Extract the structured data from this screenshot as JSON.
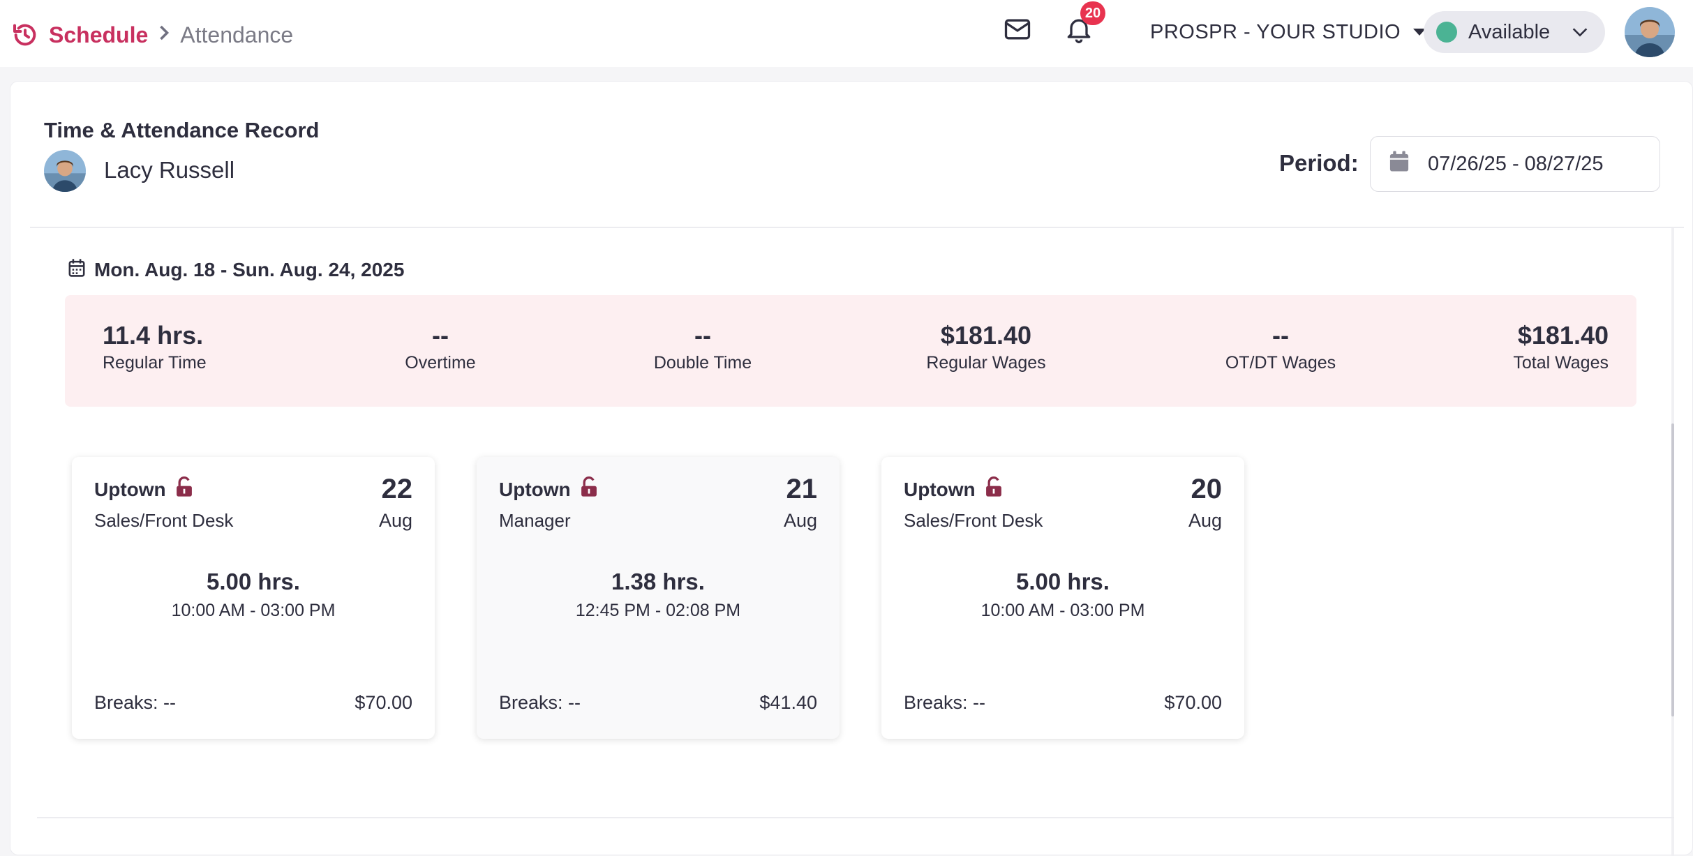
{
  "breadcrumb": {
    "root": "Schedule",
    "separator": ">",
    "current": "Attendance"
  },
  "header": {
    "notification_count": "20",
    "studio_name": "PROSPR - YOUR STUDIO",
    "status": "Available",
    "status_color": "#4bb394",
    "brand_color": "#c8305f"
  },
  "record": {
    "title": "Time & Attendance Record",
    "employee_name": "Lacy Russell",
    "period_label": "Period:",
    "period_value": "07/26/25 - 08/27/25"
  },
  "week": {
    "range": "Mon. Aug. 18 - Sun. Aug. 24, 2025",
    "summary": [
      {
        "value": "11.4 hrs.",
        "label": "Regular Time"
      },
      {
        "value": "--",
        "label": "Overtime"
      },
      {
        "value": "--",
        "label": "Double Time"
      },
      {
        "value": "$181.40",
        "label": "Regular Wages"
      },
      {
        "value": "--",
        "label": "OT/DT Wages"
      },
      {
        "value": "$181.40",
        "label": "Total Wages"
      }
    ],
    "shifts": [
      {
        "location": "Uptown",
        "role": "Sales/Front Desk",
        "day": "22",
        "month": "Aug",
        "hours": "5.00 hrs.",
        "times": "10:00 AM - 03:00 PM",
        "breaks": "Breaks: --",
        "amount": "$70.00"
      },
      {
        "location": "Uptown",
        "role": "Manager",
        "day": "21",
        "month": "Aug",
        "hours": "1.38 hrs.",
        "times": "12:45 PM - 02:08 PM",
        "breaks": "Breaks: --",
        "amount": "$41.40"
      },
      {
        "location": "Uptown",
        "role": "Sales/Front Desk",
        "day": "20",
        "month": "Aug",
        "hours": "5.00 hrs.",
        "times": "10:00 AM - 03:00 PM",
        "breaks": "Breaks: --",
        "amount": "$70.00"
      }
    ]
  },
  "icons": {
    "history": "history-icon",
    "mail": "mail-icon",
    "bell": "bell-icon",
    "calendar": "calendar-icon",
    "unlock": "unlock-icon"
  }
}
